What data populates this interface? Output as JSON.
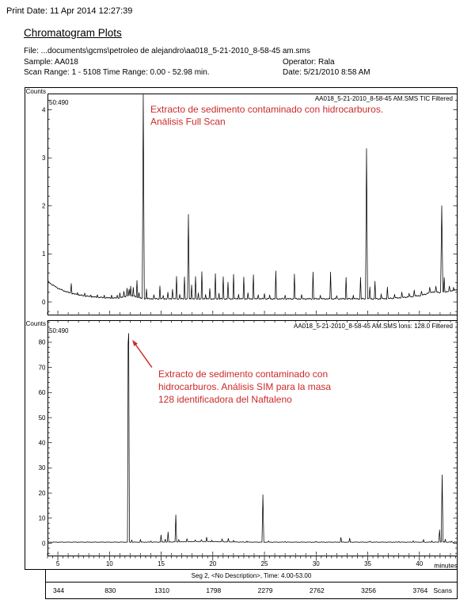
{
  "page": {
    "print_date": "Print Date:  11 Apr 2014 12:27:39",
    "title": "Chromatogram Plots",
    "file_line": "File: ...documents\\gcms\\petroleo de alejandro\\aa018_5-21-2010_8-58-45 am.sms",
    "sample": "Sample: AA018",
    "operator": "Operator: Rala",
    "scan_range": "Scan Range: 1 - 5108 Time Range: 0.00 - 52.98 min.",
    "date": "Date: 5/21/2010 8:58 AM"
  },
  "colors": {
    "annotation": "#cc2a2a",
    "trace": "#000000",
    "frame": "#000000"
  },
  "x_axis": {
    "label": "minutes",
    "t_min": 4.0,
    "t_max": 43.7,
    "major_ticks": [
      5,
      10,
      15,
      20,
      25,
      30,
      35,
      40
    ],
    "minor_step": 1,
    "ruler_minor_step": 0.5
  },
  "segment_label": "Seg 2, <No Description>, Time: 4.00-53.00",
  "scan_axis": {
    "label": "Scans",
    "values": [
      "344",
      "830",
      "1310",
      "1798",
      "2279",
      "2762",
      "3256",
      "3764"
    ],
    "at_minutes": [
      5,
      10,
      15,
      20,
      25,
      30,
      35,
      40
    ]
  },
  "chart_data": [
    {
      "type": "line",
      "name": "TIC full scan chromatogram",
      "header": "AA018_5-21-2010_8-58-45 AM.SMS TIC Filtered",
      "range_label": "50:490",
      "y_axis": {
        "unit": "MCounts",
        "max": 4.34,
        "major_step": 1,
        "minor_step": 0.2,
        "major_labels": [
          0,
          1,
          2,
          3,
          4
        ]
      },
      "annotation": [
        "Extracto de sedimento contaminado con hidrocarburos.",
        "Análisis Full Scan"
      ],
      "baseline": {
        "floor": 0.065,
        "start_amp": 0.37,
        "decay": 2.0,
        "bump_t": 12,
        "bump_amp": 0.06,
        "tail_start": 36,
        "tail_amp": 0.19,
        "noise_amp": 0.012
      },
      "peaks": [
        [
          6.3,
          0.21
        ],
        [
          6.9,
          0.05
        ],
        [
          7.6,
          0.06
        ],
        [
          8.2,
          0.04
        ],
        [
          8.83,
          0.06
        ],
        [
          9.5,
          0.05
        ],
        [
          10.2,
          0.06
        ],
        [
          10.75,
          0.06
        ],
        [
          11.0,
          0.1
        ],
        [
          11.4,
          0.12
        ],
        [
          11.7,
          0.16
        ],
        [
          11.9,
          0.13
        ],
        [
          12.05,
          0.2
        ],
        [
          12.3,
          0.18
        ],
        [
          12.66,
          0.34
        ],
        [
          12.85,
          0.12
        ],
        [
          13.27,
          4.26,
          0.1
        ],
        [
          13.58,
          0.2
        ],
        [
          14.3,
          0.07
        ],
        [
          14.88,
          0.26
        ],
        [
          15.2,
          0.07
        ],
        [
          15.65,
          0.13
        ],
        [
          16.1,
          0.21
        ],
        [
          16.49,
          0.46
        ],
        [
          16.8,
          0.1
        ],
        [
          17.26,
          0.46
        ],
        [
          17.64,
          1.76,
          0.09
        ],
        [
          17.95,
          0.3
        ],
        [
          18.33,
          0.46
        ],
        [
          18.6,
          0.12
        ],
        [
          18.94,
          0.56
        ],
        [
          19.3,
          0.1
        ],
        [
          19.71,
          0.21
        ],
        [
          20.25,
          0.51
        ],
        [
          20.6,
          0.12
        ],
        [
          21.01,
          0.46
        ],
        [
          21.47,
          0.35
        ],
        [
          22.01,
          0.51
        ],
        [
          22.5,
          0.1
        ],
        [
          23.0,
          0.46
        ],
        [
          23.4,
          0.12
        ],
        [
          23.93,
          0.51
        ],
        [
          24.4,
          0.1
        ],
        [
          25.0,
          0.12
        ],
        [
          25.5,
          0.08
        ],
        [
          26.1,
          0.57
        ],
        [
          27.0,
          0.08
        ],
        [
          27.9,
          0.52
        ],
        [
          28.6,
          0.08
        ],
        [
          29.7,
          0.56
        ],
        [
          30.4,
          0.08
        ],
        [
          31.4,
          0.56
        ],
        [
          32.0,
          0.07
        ],
        [
          32.9,
          0.44
        ],
        [
          33.6,
          0.08
        ],
        [
          34.3,
          0.44
        ],
        [
          34.88,
          3.13,
          0.1
        ],
        [
          35.2,
          0.25
        ],
        [
          35.7,
          0.36
        ],
        [
          36.3,
          0.1
        ],
        [
          36.9,
          0.24
        ],
        [
          37.6,
          0.08
        ],
        [
          38.3,
          0.1
        ],
        [
          39.0,
          0.07
        ],
        [
          39.5,
          0.14
        ],
        [
          40.2,
          0.08
        ],
        [
          41.0,
          0.1
        ],
        [
          41.6,
          0.12
        ],
        [
          42.16,
          1.8,
          0.11
        ],
        [
          42.4,
          0.3
        ],
        [
          42.9,
          0.1
        ],
        [
          43.3,
          0.07
        ]
      ]
    },
    {
      "type": "line",
      "name": "SIM m/z 128 chromatogram",
      "header": "AA018_5-21-2010_8-58-45 AM.SMS Ions: 128.0 Filtered",
      "range_label": "50:490",
      "y_axis": {
        "unit": "kCounts",
        "max": 88.5,
        "major_step": 10,
        "minor_step": 2,
        "major_labels": [
          0,
          10,
          20,
          30,
          40,
          50,
          60,
          70,
          80
        ]
      },
      "annotation": [
        "Extracto de sedimento contaminado con",
        "hidrocarburos. Análisis SIM para la masa",
        "128 identificadora del Naftaleno"
      ],
      "arrow": {
        "tip_min": 12.2,
        "tip_val": 81,
        "tail_min": 14.1,
        "tail_val": 70
      },
      "baseline": {
        "floor": 0.45,
        "bump_t": 19,
        "bump_amp": 0.25,
        "noise_amp": 0.1
      },
      "peaks": [
        [
          11.8,
          67,
          0.06
        ],
        [
          11.86,
          83,
          0.07
        ],
        [
          12.15,
          0.9
        ],
        [
          13.0,
          1.0
        ],
        [
          14.0,
          0.5
        ],
        [
          14.99,
          2.8
        ],
        [
          15.4,
          1.2
        ],
        [
          15.67,
          3.9
        ],
        [
          16.42,
          10.7,
          0.08
        ],
        [
          16.7,
          1.0
        ],
        [
          17.5,
          1.2
        ],
        [
          18.3,
          0.6
        ],
        [
          18.9,
          0.7
        ],
        [
          19.4,
          1.7
        ],
        [
          19.9,
          0.6
        ],
        [
          20.9,
          1.2
        ],
        [
          21.5,
          1.4
        ],
        [
          22.0,
          0.7
        ],
        [
          23.3,
          0.4
        ],
        [
          24.85,
          18.8,
          0.09
        ],
        [
          25.4,
          0.4
        ],
        [
          27.0,
          0.3
        ],
        [
          30.0,
          0.25
        ],
        [
          32.4,
          1.8
        ],
        [
          33.25,
          1.5
        ],
        [
          35.2,
          0.4
        ],
        [
          38.0,
          0.3
        ],
        [
          39.4,
          0.6
        ],
        [
          40.4,
          1.0
        ],
        [
          41.2,
          0.5
        ],
        [
          41.95,
          5.0,
          0.08
        ],
        [
          42.2,
          26.8,
          0.09
        ],
        [
          42.5,
          1.2
        ],
        [
          43.1,
          0.4
        ]
      ]
    }
  ]
}
